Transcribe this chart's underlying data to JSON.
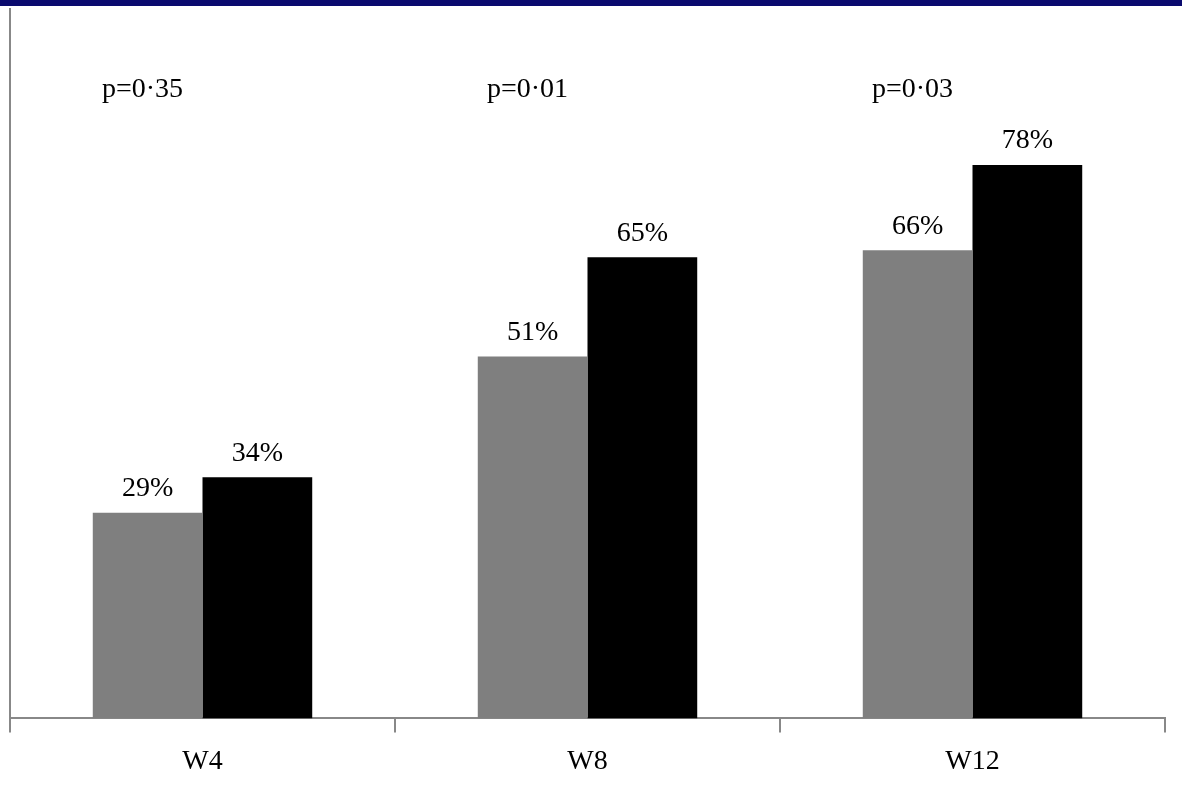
{
  "chart_data": {
    "type": "bar",
    "categories": [
      "W4",
      "W8",
      "W12"
    ],
    "series": [
      {
        "color": "#7f7f7f",
        "values": [
          29,
          51,
          66
        ],
        "value_labels": [
          "29%",
          "51%",
          "66%"
        ]
      },
      {
        "color": "#000000",
        "values": [
          34,
          65,
          78
        ],
        "value_labels": [
          "34%",
          "65%",
          "78%"
        ]
      }
    ],
    "ylim": [
      0,
      100
    ],
    "tick_labels": "x",
    "grid": false,
    "legend": false,
    "annotations": [
      "p=0·35",
      "p=0·01",
      "p=0·03"
    ]
  }
}
